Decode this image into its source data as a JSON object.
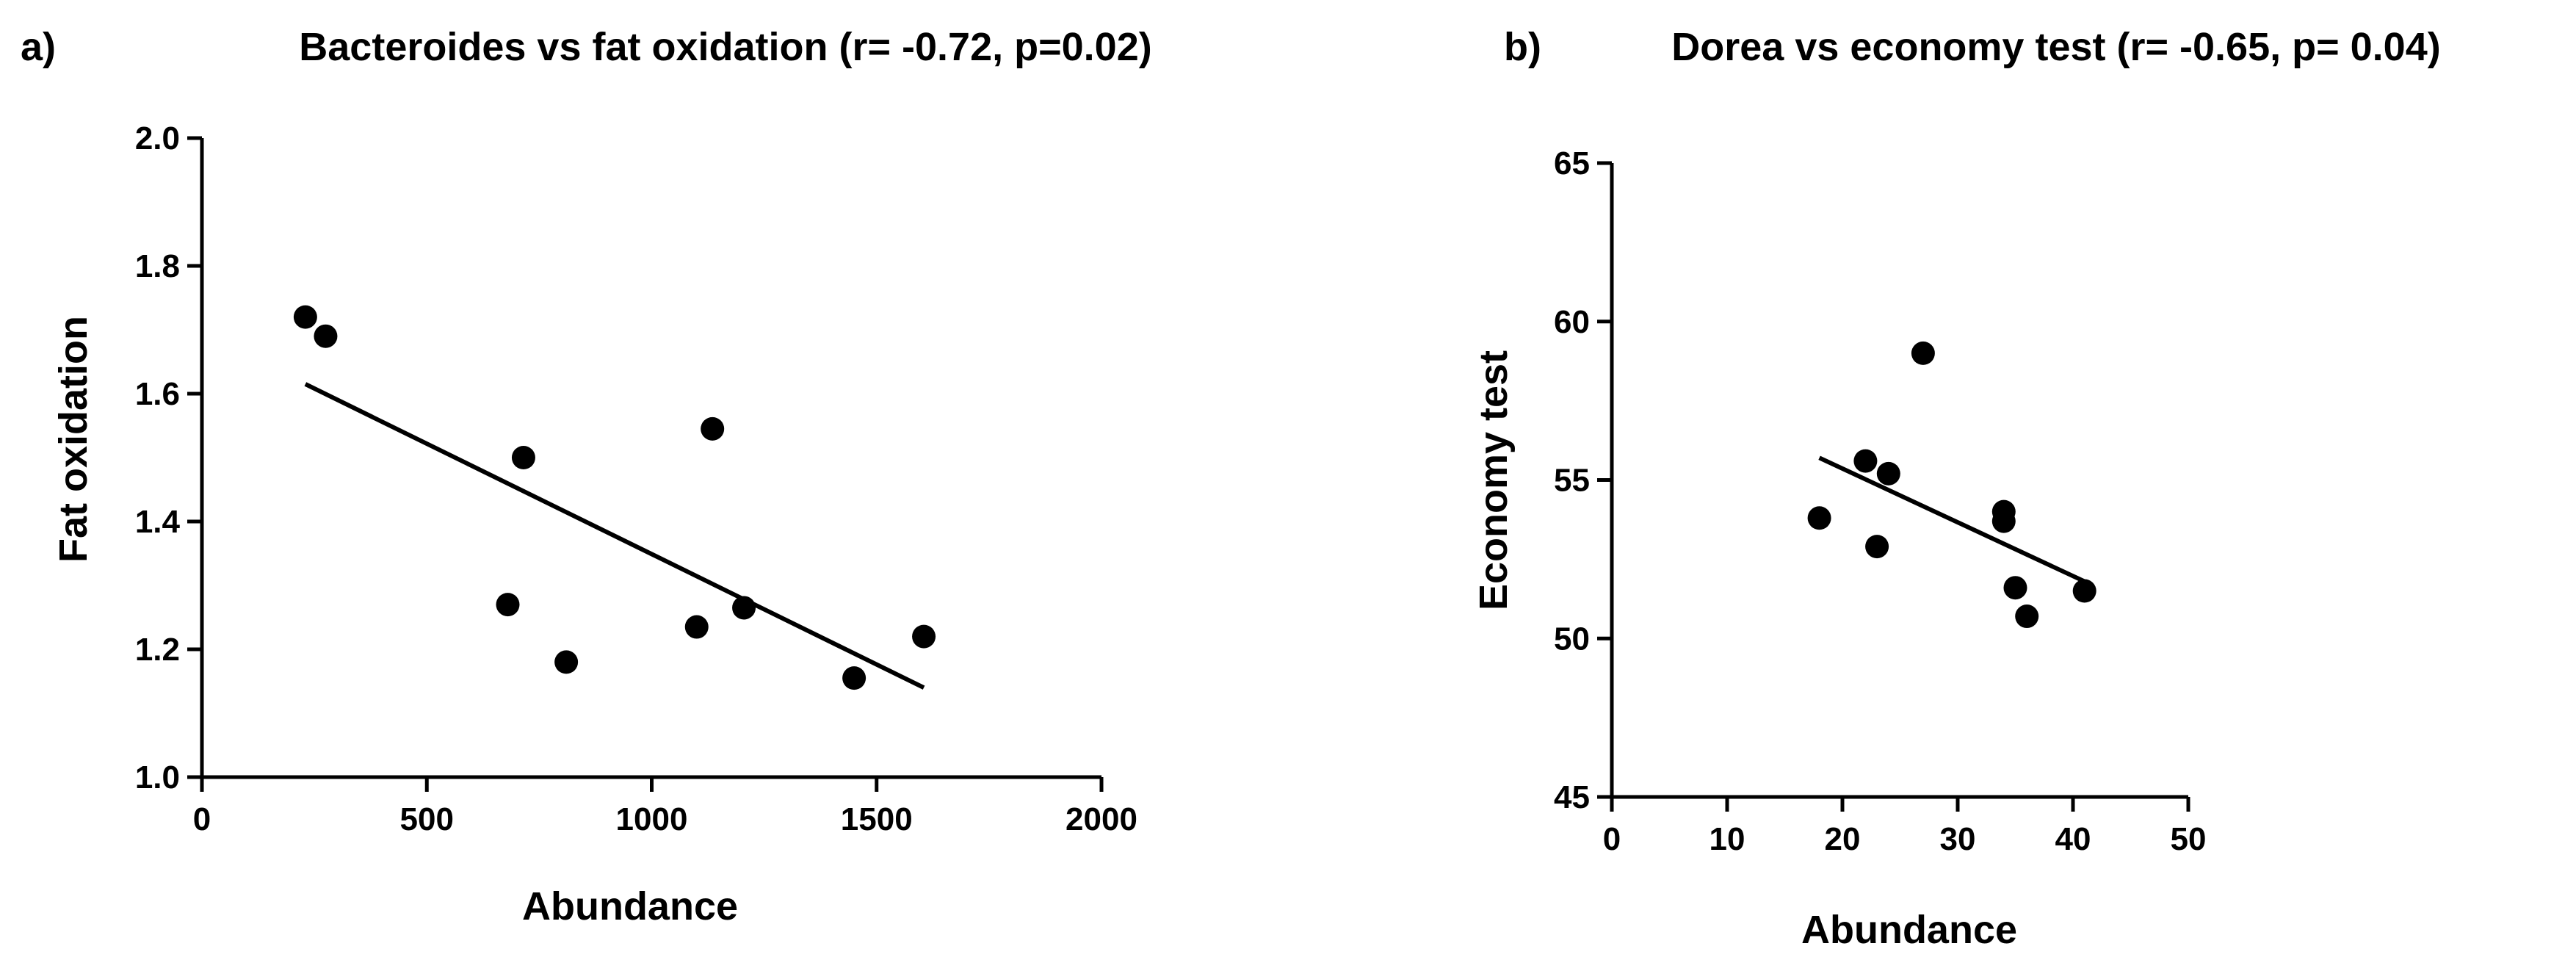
{
  "chart_data": [
    {
      "type": "scatter",
      "panel": "a)",
      "title": "Bacteroides vs fat oxidation (r= -0.72, p=0.02)",
      "xlabel": "Abundance",
      "ylabel": "Fat oxidation",
      "xlim": [
        0,
        2000
      ],
      "ylim": [
        1.0,
        2.0
      ],
      "xticks": [
        "0",
        "500",
        "1000",
        "1500",
        "2000"
      ],
      "yticks": [
        "1.0",
        "1.2",
        "1.4",
        "1.6",
        "1.8",
        "2.0"
      ],
      "grid": false,
      "points": [
        {
          "x": 230,
          "y": 1.72
        },
        {
          "x": 275,
          "y": 1.69
        },
        {
          "x": 680,
          "y": 1.27
        },
        {
          "x": 715,
          "y": 1.5
        },
        {
          "x": 810,
          "y": 1.18
        },
        {
          "x": 1100,
          "y": 1.235
        },
        {
          "x": 1135,
          "y": 1.545
        },
        {
          "x": 1205,
          "y": 1.265
        },
        {
          "x": 1450,
          "y": 1.155
        },
        {
          "x": 1605,
          "y": 1.22
        }
      ],
      "fit_line": {
        "x": [
          230,
          1605
        ],
        "y": [
          1.615,
          1.14
        ]
      }
    },
    {
      "type": "scatter",
      "panel": "b)",
      "title": "Dorea vs economy test (r= -0.65, p= 0.04)",
      "xlabel": "Abundance",
      "ylabel": "Economy test",
      "xlim": [
        0,
        50
      ],
      "ylim": [
        45,
        65
      ],
      "xticks": [
        "0",
        "10",
        "20",
        "30",
        "40",
        "50"
      ],
      "yticks": [
        "45",
        "50",
        "55",
        "60",
        "65"
      ],
      "grid": false,
      "points": [
        {
          "x": 18,
          "y": 53.8
        },
        {
          "x": 22,
          "y": 55.6
        },
        {
          "x": 23,
          "y": 52.9
        },
        {
          "x": 24,
          "y": 55.2
        },
        {
          "x": 27,
          "y": 59.0
        },
        {
          "x": 34,
          "y": 54.0
        },
        {
          "x": 34,
          "y": 53.7
        },
        {
          "x": 35,
          "y": 51.6
        },
        {
          "x": 36,
          "y": 50.7
        },
        {
          "x": 41,
          "y": 51.5
        }
      ],
      "fit_line": {
        "x": [
          18,
          41
        ],
        "y": [
          55.7,
          51.8
        ]
      }
    }
  ]
}
